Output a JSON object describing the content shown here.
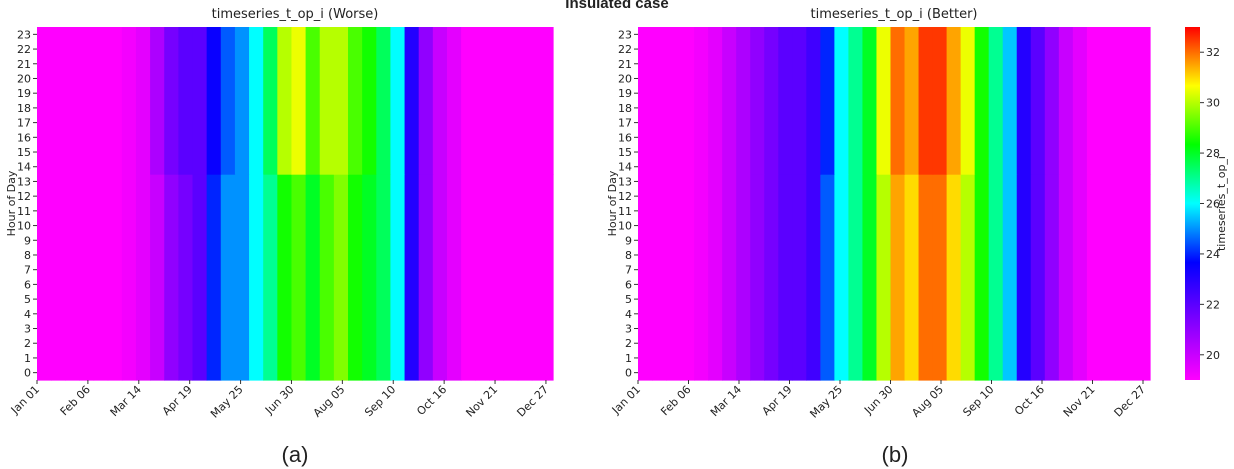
{
  "title": "Insulated case",
  "chart_data": [
    {
      "type": "heatmap",
      "title": "timeseries_t_op_i (Worse)",
      "ylabel": "Hour of Day",
      "caption": "(a)",
      "xlim": [
        0,
        365
      ],
      "ylim": [
        -0.5,
        23.5
      ],
      "xticks": [
        {
          "value": 0,
          "label": "Jan 01"
        },
        {
          "value": 36,
          "label": "Feb 06"
        },
        {
          "value": 72,
          "label": "Mar 14"
        },
        {
          "value": 108,
          "label": "Apr 19"
        },
        {
          "value": 144,
          "label": "May 25"
        },
        {
          "value": 180,
          "label": "Jun 30"
        },
        {
          "value": 216,
          "label": "Aug 05"
        },
        {
          "value": 252,
          "label": "Sep 10"
        },
        {
          "value": 288,
          "label": "Oct 16"
        },
        {
          "value": 324,
          "label": "Nov 21"
        },
        {
          "value": 360,
          "label": "Dec 27"
        }
      ],
      "yticks": [
        0,
        1,
        2,
        3,
        4,
        5,
        6,
        7,
        8,
        9,
        10,
        11,
        12,
        13,
        14,
        15,
        16,
        17,
        18,
        19,
        20,
        21,
        22,
        23
      ],
      "xbins": [
        0,
        10,
        20,
        30,
        40,
        50,
        60,
        70,
        80,
        90,
        100,
        110,
        120,
        130,
        140,
        150,
        160,
        170,
        180,
        190,
        200,
        210,
        220,
        230,
        240,
        250,
        260,
        270,
        280,
        290,
        300,
        310,
        320,
        330,
        340,
        350,
        360,
        365
      ],
      "ybins": [
        -0.5,
        13.5,
        23.5
      ],
      "zlim": [
        19,
        33
      ],
      "colormap": [
        "#ff00ff",
        "#7f00ff",
        "#0000ff",
        "#00ffff",
        "#00ff00",
        "#ffff00",
        "#ff0000"
      ],
      "values": [
        [
          19,
          19,
          19,
          19,
          19,
          19,
          19.2,
          19.5,
          20,
          21,
          21.5,
          22,
          24,
          25,
          25,
          26,
          27,
          28.5,
          29,
          28,
          29,
          29.5,
          28.5,
          28,
          27.5,
          26,
          23,
          21,
          20,
          19.5,
          19,
          19,
          19,
          19,
          19,
          19,
          19
        ],
        [
          19,
          19,
          19,
          19,
          19,
          19,
          19.2,
          19.5,
          20.5,
          21.5,
          22,
          22,
          23.5,
          24.5,
          25,
          26,
          27.5,
          30,
          30.5,
          29,
          30,
          30,
          29,
          28.5,
          27.5,
          26,
          23,
          21,
          20,
          19.5,
          19,
          19,
          19,
          19,
          19,
          19,
          19
        ]
      ]
    },
    {
      "type": "heatmap",
      "title": "timeseries_t_op_i (Better)",
      "ylabel": "Hour of Day",
      "caption": "(b)",
      "xlim": [
        0,
        365
      ],
      "ylim": [
        -0.5,
        23.5
      ],
      "xticks": [
        {
          "value": 0,
          "label": "Jan 01"
        },
        {
          "value": 36,
          "label": "Feb 06"
        },
        {
          "value": 72,
          "label": "Mar 14"
        },
        {
          "value": 108,
          "label": "Apr 19"
        },
        {
          "value": 144,
          "label": "May 25"
        },
        {
          "value": 180,
          "label": "Jun 30"
        },
        {
          "value": 216,
          "label": "Aug 05"
        },
        {
          "value": 252,
          "label": "Sep 10"
        },
        {
          "value": 288,
          "label": "Oct 16"
        },
        {
          "value": 324,
          "label": "Nov 21"
        },
        {
          "value": 360,
          "label": "Dec 27"
        }
      ],
      "yticks": [
        0,
        1,
        2,
        3,
        4,
        5,
        6,
        7,
        8,
        9,
        10,
        11,
        12,
        13,
        14,
        15,
        16,
        17,
        18,
        19,
        20,
        21,
        22,
        23
      ],
      "xbins": [
        0,
        10,
        20,
        30,
        40,
        50,
        60,
        70,
        80,
        90,
        100,
        110,
        120,
        130,
        140,
        150,
        160,
        170,
        180,
        190,
        200,
        210,
        220,
        230,
        240,
        250,
        260,
        270,
        280,
        290,
        300,
        310,
        320,
        330,
        340,
        350,
        360,
        365
      ],
      "ybins": [
        -0.5,
        13.5,
        23.5
      ],
      "zlim": [
        19,
        33
      ],
      "colormap": [
        "#ff00ff",
        "#7f00ff",
        "#0000ff",
        "#00ffff",
        "#00ff00",
        "#ffff00",
        "#ff0000"
      ],
      "colorbar_label": "timeseries_t_op_i",
      "zticks": [
        20,
        22,
        24,
        26,
        28,
        30,
        32
      ],
      "values": [
        [
          19,
          19,
          19,
          19,
          19.2,
          19.5,
          20,
          20.5,
          21,
          21.5,
          22,
          22,
          22.5,
          24.5,
          26,
          27,
          28,
          30,
          31.5,
          31,
          32,
          32,
          31,
          30,
          28.5,
          27,
          25.5,
          23,
          22,
          21,
          20,
          19.5,
          19,
          19,
          19,
          19,
          19
        ],
        [
          19,
          19,
          19,
          19,
          19.2,
          19.5,
          20,
          20.5,
          21,
          21.5,
          22,
          22,
          22.5,
          24,
          26,
          27,
          28,
          30.5,
          32,
          31.5,
          32.5,
          32.5,
          31.5,
          30.5,
          28.5,
          27,
          25.5,
          23,
          22,
          21,
          20,
          19.5,
          19,
          19,
          19,
          19,
          19
        ]
      ]
    }
  ]
}
